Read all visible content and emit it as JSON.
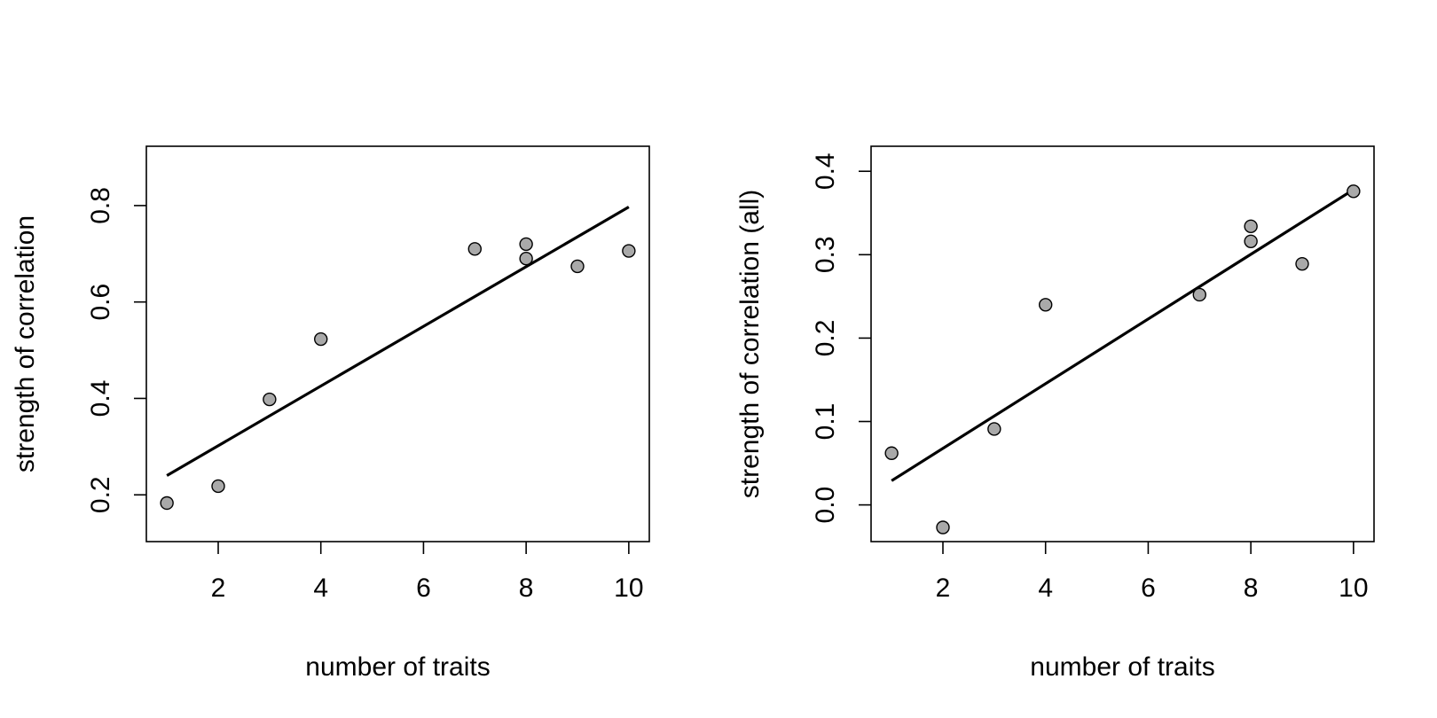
{
  "chart_data": [
    {
      "type": "scatter",
      "title": "",
      "xlabel": "number of traits",
      "ylabel": "strength of correlation",
      "xlim": [
        0.6,
        10.4
      ],
      "ylim": [
        0.103,
        0.923
      ],
      "xticks": [
        2,
        4,
        6,
        8,
        10
      ],
      "xtick_labels": [
        "2",
        "4",
        "6",
        "8",
        "10"
      ],
      "yticks": [
        0.2,
        0.4,
        0.6,
        0.8
      ],
      "ytick_labels": [
        "0.2",
        "0.4",
        "0.6",
        "0.8"
      ],
      "grid": false,
      "series": [
        {
          "x": [
            1,
            2,
            3,
            4,
            7,
            8,
            8,
            9,
            10
          ],
          "y": [
            0.183,
            0.218,
            0.398,
            0.523,
            0.71,
            0.72,
            0.69,
            0.674,
            0.706
          ]
        }
      ],
      "fit_line": {
        "x": [
          1,
          10
        ],
        "y": [
          0.24,
          0.797
        ]
      },
      "marker_fill": "#a9a9a9",
      "marker_edge": "#000000",
      "line_color": "#000000"
    },
    {
      "type": "scatter",
      "title": "",
      "xlabel": "number of traits",
      "ylabel": "strength of correlation (all)",
      "xlim": [
        0.6,
        10.4
      ],
      "ylim": [
        -0.044,
        0.43
      ],
      "xticks": [
        2,
        4,
        6,
        8,
        10
      ],
      "xtick_labels": [
        "2",
        "4",
        "6",
        "8",
        "10"
      ],
      "yticks": [
        0.0,
        0.1,
        0.2,
        0.3,
        0.4
      ],
      "ytick_labels": [
        "0.0",
        "0.1",
        "0.2",
        "0.3",
        "0.4"
      ],
      "grid": false,
      "series": [
        {
          "x": [
            1,
            2,
            3,
            4,
            7,
            8,
            8,
            9,
            10
          ],
          "y": [
            0.062,
            -0.027,
            0.091,
            0.24,
            0.252,
            0.334,
            0.316,
            0.289,
            0.376
          ]
        }
      ],
      "fit_line": {
        "x": [
          1,
          10
        ],
        "y": [
          0.029,
          0.378
        ]
      },
      "marker_fill": "#a9a9a9",
      "marker_edge": "#000000",
      "line_color": "#000000"
    }
  ]
}
